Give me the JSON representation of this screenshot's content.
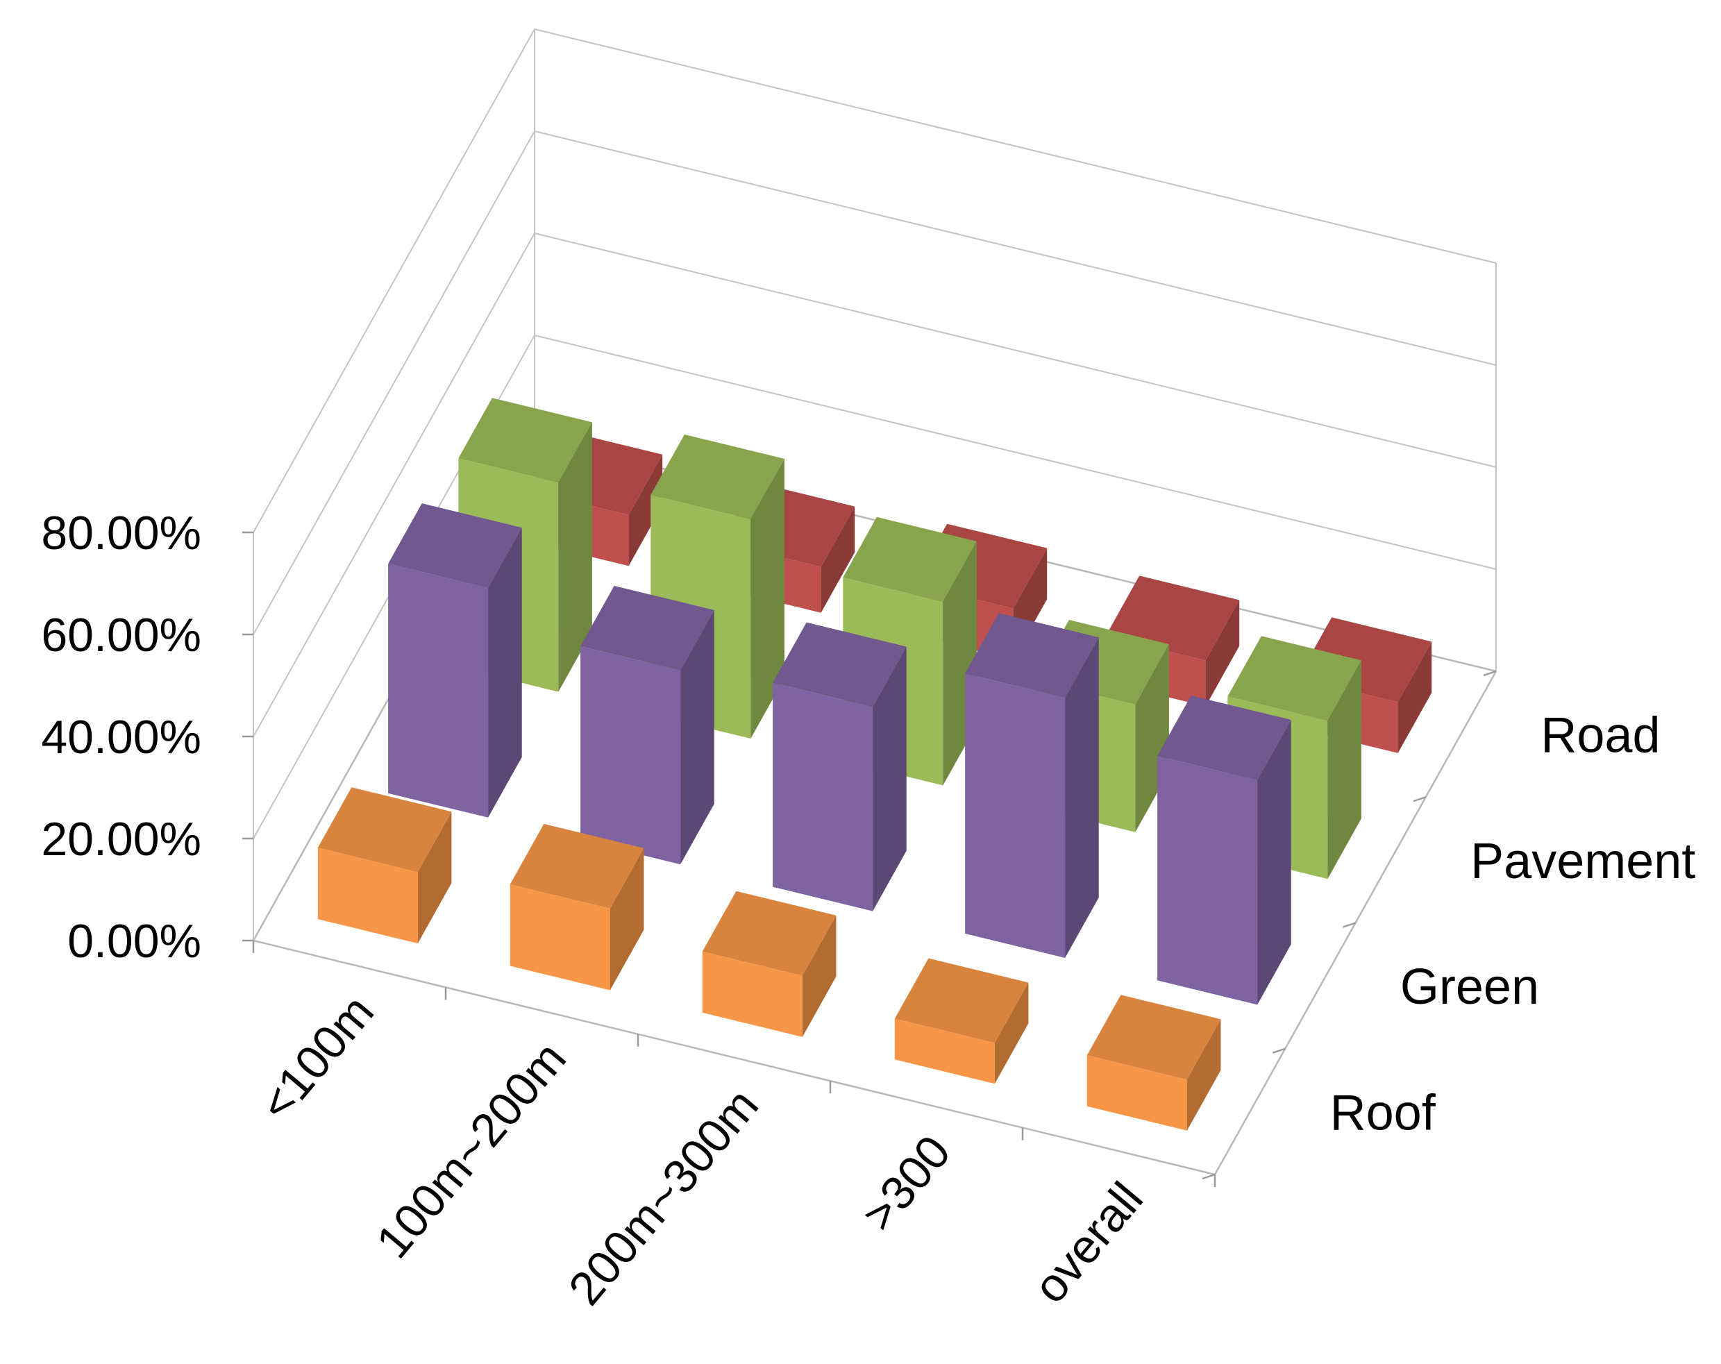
{
  "chart_data": {
    "type": "bar",
    "subtype": "3d-column",
    "title": "",
    "xlabel": "",
    "ylabel": "",
    "categories": [
      "<100m",
      "100m~200m",
      "200m~300m",
      ">300",
      "overall"
    ],
    "series": [
      {
        "name": "Roof",
        "color": "#f79646",
        "values": [
          0.14,
          0.16,
          0.12,
          0.08,
          0.1
        ]
      },
      {
        "name": "Green",
        "color": "#8064a2",
        "values": [
          0.45,
          0.38,
          0.4,
          0.51,
          0.44
        ]
      },
      {
        "name": "Pavement",
        "color": "#9bbb59",
        "values": [
          0.41,
          0.43,
          0.36,
          0.25,
          0.31
        ]
      },
      {
        "name": "Road",
        "color": "#c0504d",
        "values": [
          0.1,
          0.09,
          0.1,
          0.09,
          0.1
        ]
      }
    ],
    "ylim": [
      0,
      0.8
    ],
    "yticks": [
      "0.00%",
      "20.00%",
      "40.00%",
      "60.00%",
      "80.00%"
    ],
    "grid": true,
    "legend": "depth axis labels on right"
  }
}
